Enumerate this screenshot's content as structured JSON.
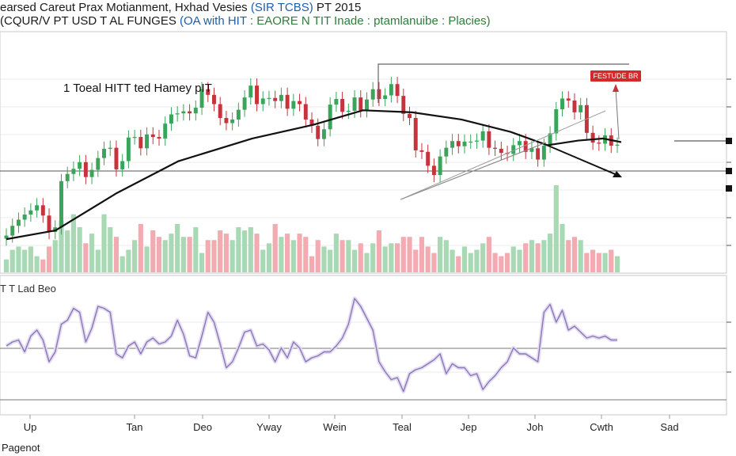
{
  "header": {
    "title_parts": [
      {
        "text": "earsed Careut Prax Motianment, Hxhad Vesies ",
        "color": "#1a1a1a"
      },
      {
        "text": "(SIR TCBS)",
        "color": "#1e5fa8"
      },
      {
        "text": " PT 2015",
        "color": "#1a1a1a"
      }
    ],
    "subtitle_parts": [
      {
        "text": "(CQUR/V PT USD T AL FUNGES ",
        "color": "#1a1a1a"
      },
      {
        "text": "(OA with HIT",
        "color": "#1e5fa8"
      },
      {
        "text": " : EAORE N TIT Inade : ptamlanuibe : Placies)",
        "color": "#2e7d3a"
      }
    ]
  },
  "annotations": {
    "main_note": "1 Toeal HITT ted Hamey pIT",
    "sub_note": "T T Lad Beo",
    "callout": "FESTUDE BR",
    "footer": "Pagenot"
  },
  "colors": {
    "up": "#3aa55a",
    "down": "#c8323c",
    "vol_up": "#a9d9b4",
    "vol_down": "#f3aab0",
    "trend": "#111111",
    "oscillator": "#8a78b8",
    "grid": "#d8d8d8",
    "ref_line": "#9a9a9a"
  },
  "chart_data": [
    {
      "type": "candlestick",
      "x_ticks": [
        "Up",
        "Tan",
        "Deo",
        "Yway",
        "Wein",
        "Teal",
        "Jep",
        "Joh",
        "Cwth",
        "Sad"
      ],
      "close": [
        60.0,
        61.9,
        63.1,
        64.1,
        64.9,
        65.9,
        63.9,
        60.7,
        61.6,
        70.6,
        72.0,
        73.0,
        74.3,
        71.4,
        72.8,
        75.1,
        76.9,
        77.1,
        72.9,
        74.5,
        79.1,
        79.2,
        77.0,
        79.7,
        79.2,
        78.9,
        81.8,
        83.6,
        83.8,
        84.2,
        83.8,
        84.9,
        88.5,
        87.4,
        85.6,
        82.9,
        81.9,
        82.6,
        84.5,
        86.9,
        89.2,
        85.6,
        86.7,
        86.8,
        86.2,
        87.4,
        84.7,
        86.2,
        85.6,
        82.6,
        81.4,
        78.8,
        80.7,
        85.5,
        86.6,
        84.1,
        84.3,
        86.9,
        84.4,
        86.5,
        88.5,
        86.6,
        87.3,
        89.5,
        87.2,
        83.7,
        82.9,
        76.6,
        76.3,
        73.6,
        71.8,
        75.4,
        77.1,
        78.4,
        77.4,
        78.3,
        78.3,
        78.5,
        80.3,
        77.1,
        76.9,
        76.1,
        75.9,
        77.6,
        78.4,
        76.3,
        77.0,
        74.8,
        77.5,
        79.9,
        84.6,
        86.7,
        86.3,
        84.0,
        85.4,
        80.0,
        78.1,
        77.9,
        79.5,
        77.5,
        77.7
      ],
      "volume": [
        4,
        7,
        8,
        7,
        8,
        5,
        4,
        8,
        10,
        16,
        13,
        18,
        14,
        9,
        12,
        7,
        18,
        14,
        11,
        5,
        7,
        10,
        15,
        8,
        13,
        11,
        10,
        12,
        15,
        11,
        11,
        14,
        6,
        10,
        10,
        13,
        12,
        10,
        14,
        13,
        14,
        12,
        7,
        9,
        15,
        11,
        12,
        10,
        12,
        11,
        5,
        10,
        8,
        7,
        12,
        10,
        10,
        7,
        9,
        6,
        9,
        13,
        8,
        9,
        9,
        11,
        11,
        7,
        11,
        8,
        6,
        11,
        10,
        7,
        5,
        8,
        6,
        7,
        9,
        11,
        6,
        5,
        6,
        8,
        7,
        9,
        10,
        9,
        10,
        12,
        27,
        15,
        10,
        11,
        10,
        6,
        7,
        6,
        6,
        7,
        5
      ],
      "trend_x": [
        0,
        8,
        18,
        28,
        40,
        50,
        58,
        66,
        74,
        82,
        88,
        93,
        97,
        100
      ],
      "trend_y": [
        59.3,
        61.0,
        68.3,
        74.5,
        78.9,
        81.6,
        84.4,
        84.0,
        82.6,
        80.2,
        77.6,
        78.5,
        78.9,
        78.2
      ]
    },
    {
      "type": "line",
      "values": [
        45,
        47,
        48,
        42,
        50,
        53,
        48,
        37,
        42,
        56,
        58,
        64,
        62,
        47,
        54,
        65,
        64,
        62,
        41,
        39,
        45,
        47,
        41,
        47,
        49,
        46,
        47,
        50,
        58,
        51,
        40,
        39,
        50,
        62,
        57,
        46,
        34,
        37,
        44,
        52,
        53,
        45,
        46,
        43,
        37,
        44,
        39,
        47,
        44,
        37,
        39,
        40,
        42,
        42,
        45,
        49,
        56,
        69,
        65,
        59,
        53,
        37,
        32,
        28,
        29,
        22,
        31,
        33,
        34,
        36,
        38,
        41,
        31,
        36,
        34,
        34,
        30,
        31,
        23,
        27,
        30,
        34,
        37,
        44,
        41,
        41,
        39,
        37,
        62,
        66,
        57,
        63,
        53,
        55,
        52,
        49,
        50,
        49,
        50,
        48,
        48
      ]
    }
  ]
}
